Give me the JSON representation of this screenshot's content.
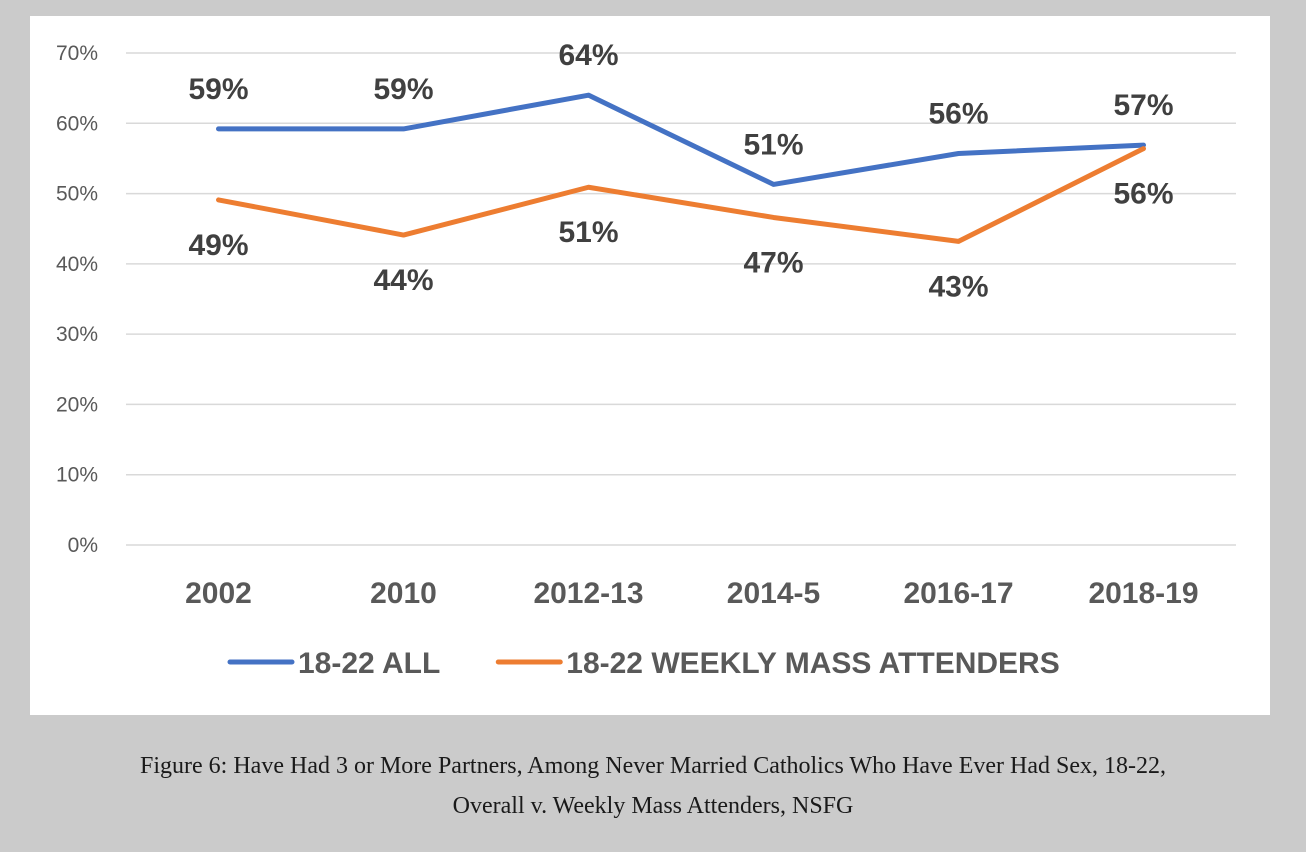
{
  "caption": {
    "line1": "Figure 6: Have Had 3 or More Partners, Among Never Married Catholics Who Have Ever Had Sex, 18-22,",
    "line2": "Overall v. Weekly Mass Attenders, NSFG"
  },
  "chart_data": {
    "type": "line",
    "categories": [
      "2002",
      "2010",
      "2012-13",
      "2014-5",
      "2016-17",
      "2018-19"
    ],
    "y_ticks": [
      "0%",
      "10%",
      "20%",
      "30%",
      "40%",
      "50%",
      "60%",
      "70%"
    ],
    "ylim": [
      0,
      70
    ],
    "grid": true,
    "legend_position": "bottom",
    "title": "",
    "xlabel": "",
    "ylabel": "",
    "series": [
      {
        "name": "18-22 ALL",
        "color": "#4472c4",
        "values": [
          59.2,
          59.2,
          64.0,
          51.3,
          55.7,
          56.9
        ],
        "labels": [
          "59%",
          "59%",
          "64%",
          "51%",
          "56%",
          "57%"
        ],
        "label_side": "above"
      },
      {
        "name": "18-22 WEEKLY MASS ATTENDERS",
        "color": "#ed7d31",
        "values": [
          49.1,
          44.1,
          50.9,
          46.6,
          43.2,
          56.4
        ],
        "labels": [
          "49%",
          "44%",
          "51%",
          "47%",
          "43%",
          "56%"
        ],
        "label_side": "below"
      }
    ]
  }
}
